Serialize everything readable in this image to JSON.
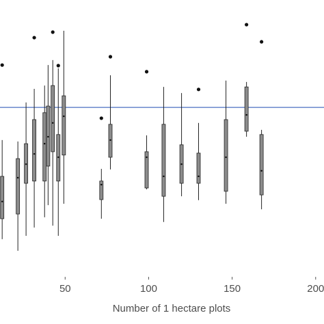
{
  "chart_data": {
    "type": "box",
    "xlabel": "Number of 1 hectare plots",
    "xlim": [
      11,
      205
    ],
    "xticks": [
      50,
      100,
      150,
      200
    ],
    "ylim": [
      0,
      100
    ],
    "reference_line": {
      "value": 61.2,
      "color": "#4a6fc1"
    },
    "box_color": "#8c8c8c",
    "boxes": [
      {
        "x": 12.3,
        "whislo": 13.6,
        "q1": 21.0,
        "med": 27.2,
        "q3": 36.3,
        "whishi": 49.4,
        "fliers": [
          76.5
        ]
      },
      {
        "x": 21.7,
        "whislo": 9.4,
        "q1": 22.7,
        "med": 35.8,
        "q3": 42.7,
        "whishi": 48.9,
        "fliers": []
      },
      {
        "x": 26.6,
        "whislo": 14.8,
        "q1": 33.8,
        "med": 40.7,
        "q3": 48.1,
        "whishi": 63.0,
        "fliers": []
      },
      {
        "x": 31.5,
        "whislo": 17.8,
        "q1": 34.6,
        "med": 44.4,
        "q3": 56.8,
        "whishi": 67.9,
        "fliers": [
          86.4
        ]
      },
      {
        "x": 37.7,
        "whislo": 21.5,
        "q1": 34.6,
        "med": 48.1,
        "q3": 59.3,
        "whishi": 69.1,
        "fliers": []
      },
      {
        "x": 39.8,
        "whislo": 25.9,
        "q1": 40.0,
        "med": 50.6,
        "q3": 61.7,
        "whishi": 76.5,
        "fliers": []
      },
      {
        "x": 42.6,
        "whislo": 18.5,
        "q1": 45.2,
        "med": 55.6,
        "q3": 69.1,
        "whishi": 78.3,
        "fliers": [
          88.4
        ]
      },
      {
        "x": 45.9,
        "whislo": 14.8,
        "q1": 34.6,
        "med": 43.2,
        "q3": 51.4,
        "whishi": 75.3,
        "fliers": [
          76.3
        ]
      },
      {
        "x": 49.2,
        "whislo": 26.4,
        "q1": 44.0,
        "med": 58.0,
        "q3": 65.4,
        "whishi": 88.9,
        "fliers": []
      },
      {
        "x": 71.7,
        "whislo": 21.0,
        "q1": 27.9,
        "med": 33.3,
        "q3": 34.6,
        "whishi": 39.0,
        "fliers": [
          57.3
        ]
      },
      {
        "x": 77.1,
        "whislo": 38.8,
        "q1": 43.2,
        "med": 49.4,
        "q3": 55.1,
        "whishi": 72.8,
        "fliers": [
          79.5
        ]
      },
      {
        "x": 98.8,
        "whislo": 31.6,
        "q1": 32.1,
        "med": 43.2,
        "q3": 45.2,
        "whishi": 51.1,
        "fliers": [
          74.1
        ]
      },
      {
        "x": 109.0,
        "whislo": 19.8,
        "q1": 29.1,
        "med": 36.3,
        "q3": 55.1,
        "whishi": 68.6,
        "fliers": []
      },
      {
        "x": 119.7,
        "whislo": 29.1,
        "q1": 33.8,
        "med": 40.7,
        "q3": 47.7,
        "whishi": 66.4,
        "fliers": []
      },
      {
        "x": 129.9,
        "whislo": 27.7,
        "q1": 33.8,
        "med": 36.3,
        "q3": 44.7,
        "whishi": 55.6,
        "fliers": [
          67.7
        ]
      },
      {
        "x": 146.3,
        "whislo": 26.4,
        "q1": 30.9,
        "med": 43.2,
        "q3": 56.8,
        "whishi": 70.9,
        "fliers": []
      },
      {
        "x": 158.6,
        "whislo": 50.6,
        "q1": 52.6,
        "med": 58.5,
        "q3": 68.6,
        "whishi": 70.4,
        "fliers": [
          91.1
        ]
      },
      {
        "x": 167.6,
        "whislo": 24.4,
        "q1": 29.6,
        "med": 38.3,
        "q3": 51.4,
        "whishi": 53.1,
        "fliers": [
          84.9
        ]
      }
    ]
  }
}
